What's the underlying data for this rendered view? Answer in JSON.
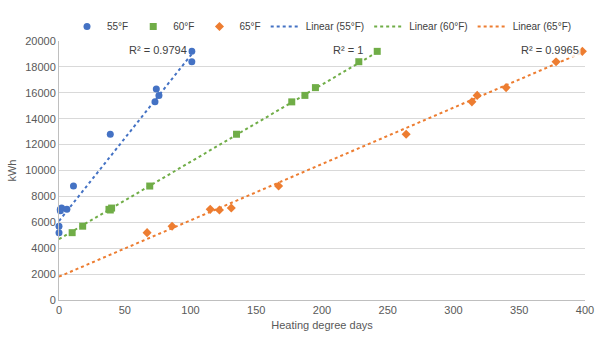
{
  "chart_data": {
    "type": "scatter",
    "x_label": "Heating degree days",
    "y_label": "kWh",
    "xlim": [
      0,
      400
    ],
    "xticks": [
      0,
      50,
      100,
      150,
      200,
      250,
      300,
      350,
      400
    ],
    "ylim": [
      0,
      20000
    ],
    "yticks": [
      0,
      2000,
      4000,
      6000,
      8000,
      10000,
      12000,
      14000,
      16000,
      18000,
      20000
    ],
    "grid": true,
    "legend": "top",
    "series": [
      {
        "name": "55°F",
        "type": "scatter",
        "marker": "circle",
        "color": "#4472c4",
        "x": [
          0,
          0,
          1,
          1,
          2,
          6,
          11,
          39,
          73,
          74,
          76,
          101,
          101
        ],
        "values": [
          5200,
          5700,
          6900,
          7000,
          7100,
          7000,
          8800,
          12800,
          15300,
          16300,
          15800,
          18400,
          19200
        ]
      },
      {
        "name": "60°F",
        "type": "scatter",
        "marker": "square",
        "color": "#70ad47",
        "x": [
          10,
          18,
          38,
          39,
          40,
          69,
          135,
          177,
          187,
          195,
          228,
          242
        ],
        "values": [
          5200,
          5700,
          7000,
          6950,
          7100,
          8800,
          12800,
          15300,
          15800,
          16400,
          18400,
          19200
        ]
      },
      {
        "name": "65°F",
        "type": "scatter",
        "marker": "diamond",
        "color": "#ed7d31",
        "x": [
          67,
          86,
          115,
          122,
          131,
          167,
          264,
          314,
          318,
          340,
          378,
          398
        ],
        "values": [
          5200,
          5700,
          7000,
          6950,
          7100,
          8800,
          12800,
          15300,
          15800,
          16400,
          18400,
          19200
        ]
      },
      {
        "name": "Linear (55°F)",
        "type": "line",
        "line_style": "dotted",
        "color": "#4472c4",
        "x": [
          0,
          101
        ],
        "values": [
          6100,
          19000
        ]
      },
      {
        "name": "Linear (60°F)",
        "type": "line",
        "line_style": "dotted",
        "color": "#70ad47",
        "x": [
          0,
          243
        ],
        "values": [
          4700,
          19200
        ]
      },
      {
        "name": "Linear (65°F)",
        "type": "line",
        "line_style": "dotted",
        "color": "#ed7d31",
        "x": [
          0,
          400
        ],
        "values": [
          1800,
          19200
        ]
      }
    ],
    "annotations": [
      {
        "text": "R² = 0.9794",
        "x": 75,
        "y": 19300
      },
      {
        "text": "R² = 1",
        "x": 220,
        "y": 19300
      },
      {
        "text": "R² = 0.9965",
        "x": 373,
        "y": 19300
      }
    ]
  }
}
